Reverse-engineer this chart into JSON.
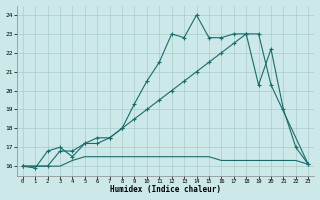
{
  "xlabel": "Humidex (Indice chaleur)",
  "xlim": [
    -0.5,
    23.5
  ],
  "ylim": [
    15.5,
    24.5
  ],
  "yticks": [
    16,
    17,
    18,
    19,
    20,
    21,
    22,
    23,
    24
  ],
  "xticks": [
    0,
    1,
    2,
    3,
    4,
    5,
    6,
    7,
    8,
    9,
    10,
    11,
    12,
    13,
    14,
    15,
    16,
    17,
    18,
    19,
    20,
    21,
    22,
    23
  ],
  "bg_color": "#cce8e8",
  "grid_color": "#aacccc",
  "line_color": "#1a6b6b",
  "line1_x": [
    0,
    1,
    2,
    3,
    4,
    5,
    6,
    7,
    8,
    9,
    10,
    11,
    12,
    13,
    14,
    15,
    16,
    17,
    18,
    19,
    20,
    21,
    22,
    23
  ],
  "line1_y": [
    16.0,
    15.9,
    16.8,
    17.0,
    16.5,
    17.2,
    17.5,
    17.5,
    18.0,
    19.3,
    20.5,
    21.5,
    23.0,
    22.8,
    24.0,
    22.8,
    22.8,
    23.0,
    23.0,
    20.3,
    22.2,
    19.0,
    17.0,
    16.1
  ],
  "line2_x": [
    0,
    2,
    3,
    4,
    5,
    6,
    7,
    8,
    9,
    10,
    11,
    12,
    13,
    14,
    15,
    16,
    17,
    18,
    19,
    20,
    23
  ],
  "line2_y": [
    16.0,
    16.0,
    16.8,
    16.8,
    17.2,
    17.2,
    17.5,
    18.0,
    18.5,
    19.0,
    19.5,
    20.0,
    20.5,
    21.0,
    21.5,
    22.0,
    22.5,
    23.0,
    23.0,
    20.3,
    16.1
  ],
  "line3_x": [
    0,
    1,
    2,
    3,
    4,
    5,
    6,
    7,
    8,
    9,
    10,
    11,
    12,
    13,
    14,
    15,
    16,
    17,
    18,
    19,
    20,
    21,
    22,
    23
  ],
  "line3_y": [
    16.0,
    16.0,
    16.0,
    16.0,
    16.3,
    16.5,
    16.5,
    16.5,
    16.5,
    16.5,
    16.5,
    16.5,
    16.5,
    16.5,
    16.5,
    16.5,
    16.3,
    16.3,
    16.3,
    16.3,
    16.3,
    16.3,
    16.3,
    16.1
  ]
}
